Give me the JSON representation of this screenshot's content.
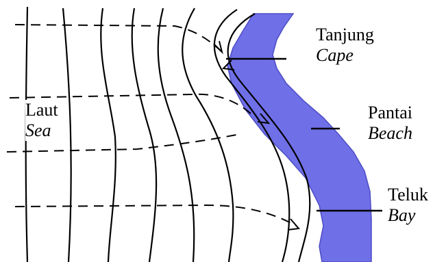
{
  "labels": {
    "cape": {
      "local": "Tanjung",
      "english": "Cape"
    },
    "beach": {
      "local": "Pantai",
      "english": "Beach"
    },
    "bay": {
      "local": "Teluk",
      "english": "Bay"
    },
    "sea": {
      "local": "Laut",
      "english": "Sea"
    }
  },
  "colors": {
    "land": "#6f6fe8",
    "land_edge": "#4c4cc4",
    "ink": "#000000"
  }
}
